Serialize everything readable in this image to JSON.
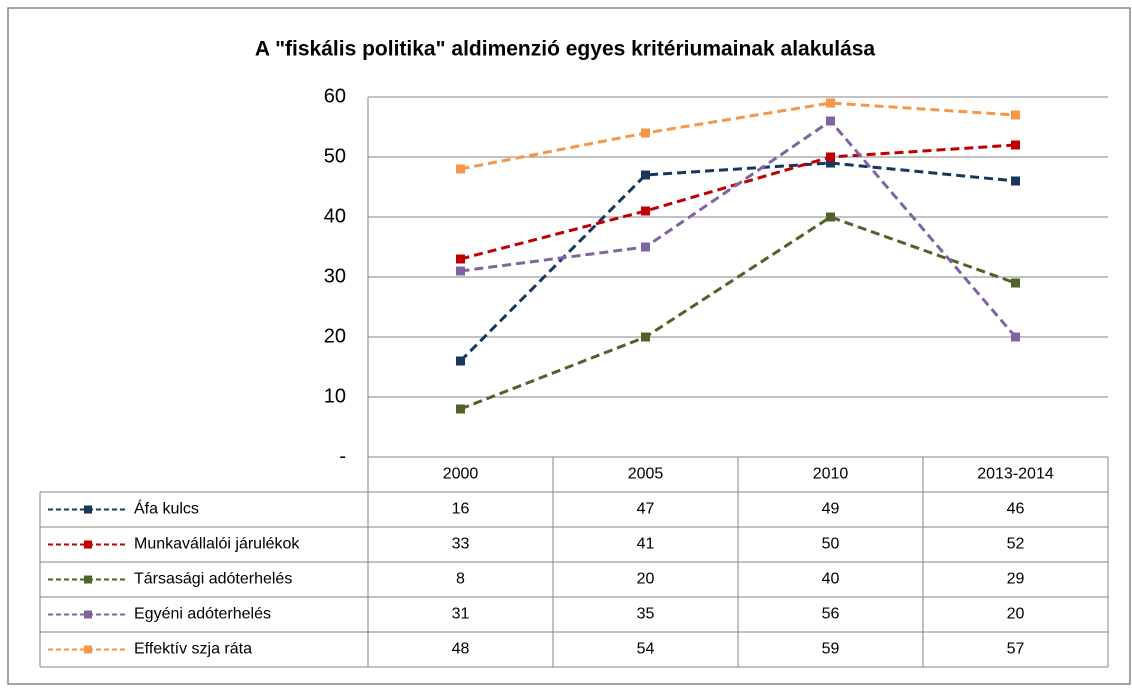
{
  "chart_data": {
    "type": "line",
    "title": "A \"fiskális politika\" aldimenzió egyes kritériumainak alakulása",
    "categories": [
      "2000",
      "2005",
      "2010",
      "2013-2014"
    ],
    "series": [
      {
        "name": "Áfa kulcs",
        "color": "#17375e",
        "values": [
          16,
          47,
          49,
          46
        ]
      },
      {
        "name": "Munkavállalói járulékok",
        "color": "#c00000",
        "values": [
          33,
          41,
          50,
          52
        ]
      },
      {
        "name": "Társasági adóterhelés",
        "color": "#4f6228",
        "values": [
          8,
          20,
          40,
          29
        ]
      },
      {
        "name": "Egyéni adóterhelés",
        "color": "#8064a2",
        "values": [
          31,
          35,
          56,
          20
        ]
      },
      {
        "name": "Effektív szja ráta",
        "color": "#f79646",
        "values": [
          48,
          54,
          59,
          57
        ]
      }
    ],
    "ylim": [
      0,
      60
    ],
    "yticks": [
      {
        "value": 0,
        "label": "-"
      },
      10,
      20,
      30,
      40,
      50,
      60
    ],
    "grid": true
  }
}
